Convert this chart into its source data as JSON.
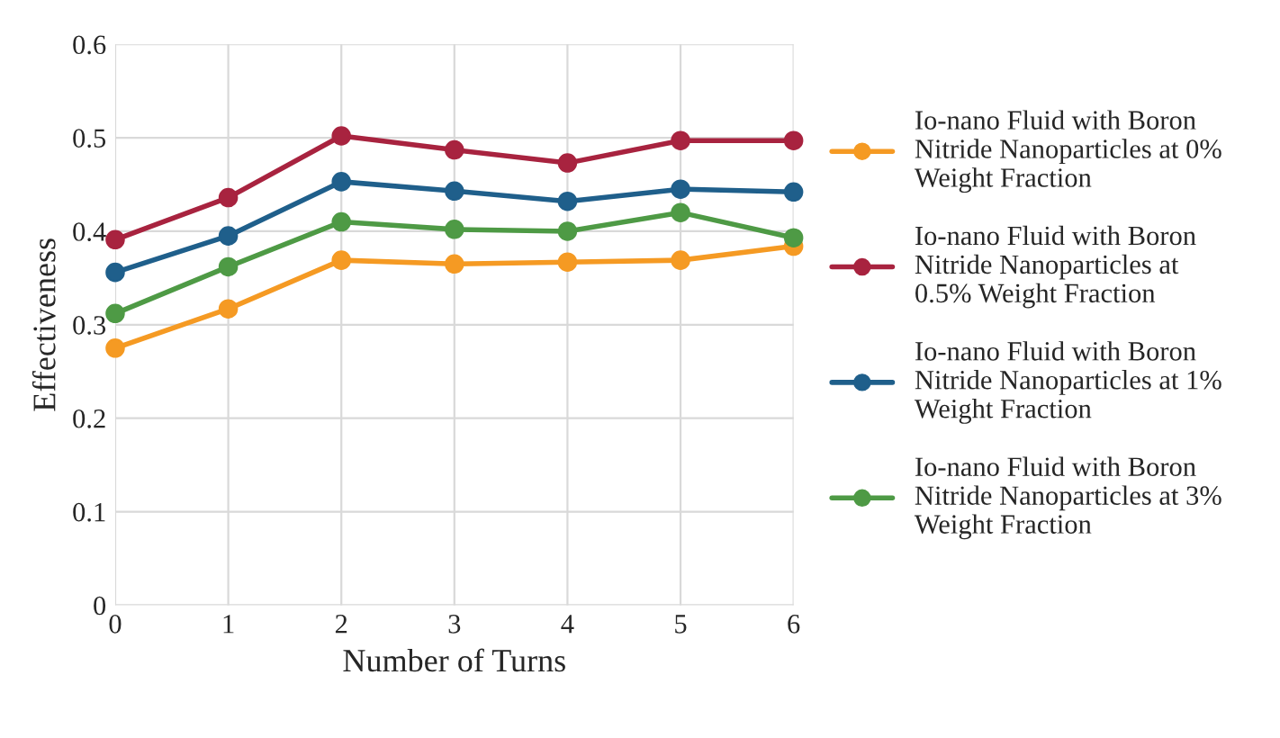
{
  "chart_data": {
    "type": "line",
    "xlabel": "Number of Turns",
    "ylabel": "Effectiveness",
    "x": [
      0,
      1,
      2,
      3,
      4,
      5,
      6
    ],
    "series": [
      {
        "name": "Io-nano Fluid with Boron Nitride Nanoparticles at 0% Weight Fraction",
        "color": "#f59a23",
        "values": [
          0.275,
          0.317,
          0.369,
          0.365,
          0.367,
          0.369,
          0.384
        ]
      },
      {
        "name": "Io-nano Fluid with Boron Nitride Nanoparticles at 0.5% Weight Fraction",
        "color": "#a8233f",
        "values": [
          0.391,
          0.436,
          0.502,
          0.487,
          0.473,
          0.497,
          0.497
        ]
      },
      {
        "name": "Io-nano Fluid with Boron Nitride Nanoparticles at 1% Weight Fraction",
        "color": "#1f5f8b",
        "values": [
          0.356,
          0.395,
          0.453,
          0.443,
          0.432,
          0.445,
          0.442
        ]
      },
      {
        "name": "Io-nano Fluid with Boron Nitride Nanoparticles at 3% Weight Fraction",
        "color": "#4e9a45",
        "values": [
          0.312,
          0.362,
          0.41,
          0.402,
          0.4,
          0.42,
          0.393
        ]
      }
    ],
    "xlim": [
      0,
      6
    ],
    "xticks": [
      0,
      1,
      2,
      3,
      4,
      5,
      6
    ],
    "ylim": [
      0,
      0.6
    ],
    "yticks": [
      0,
      0.1,
      0.2,
      0.3,
      0.4,
      0.5,
      0.6
    ],
    "grid": true,
    "legend": "right",
    "marker": "circle",
    "line_style": "solid"
  }
}
